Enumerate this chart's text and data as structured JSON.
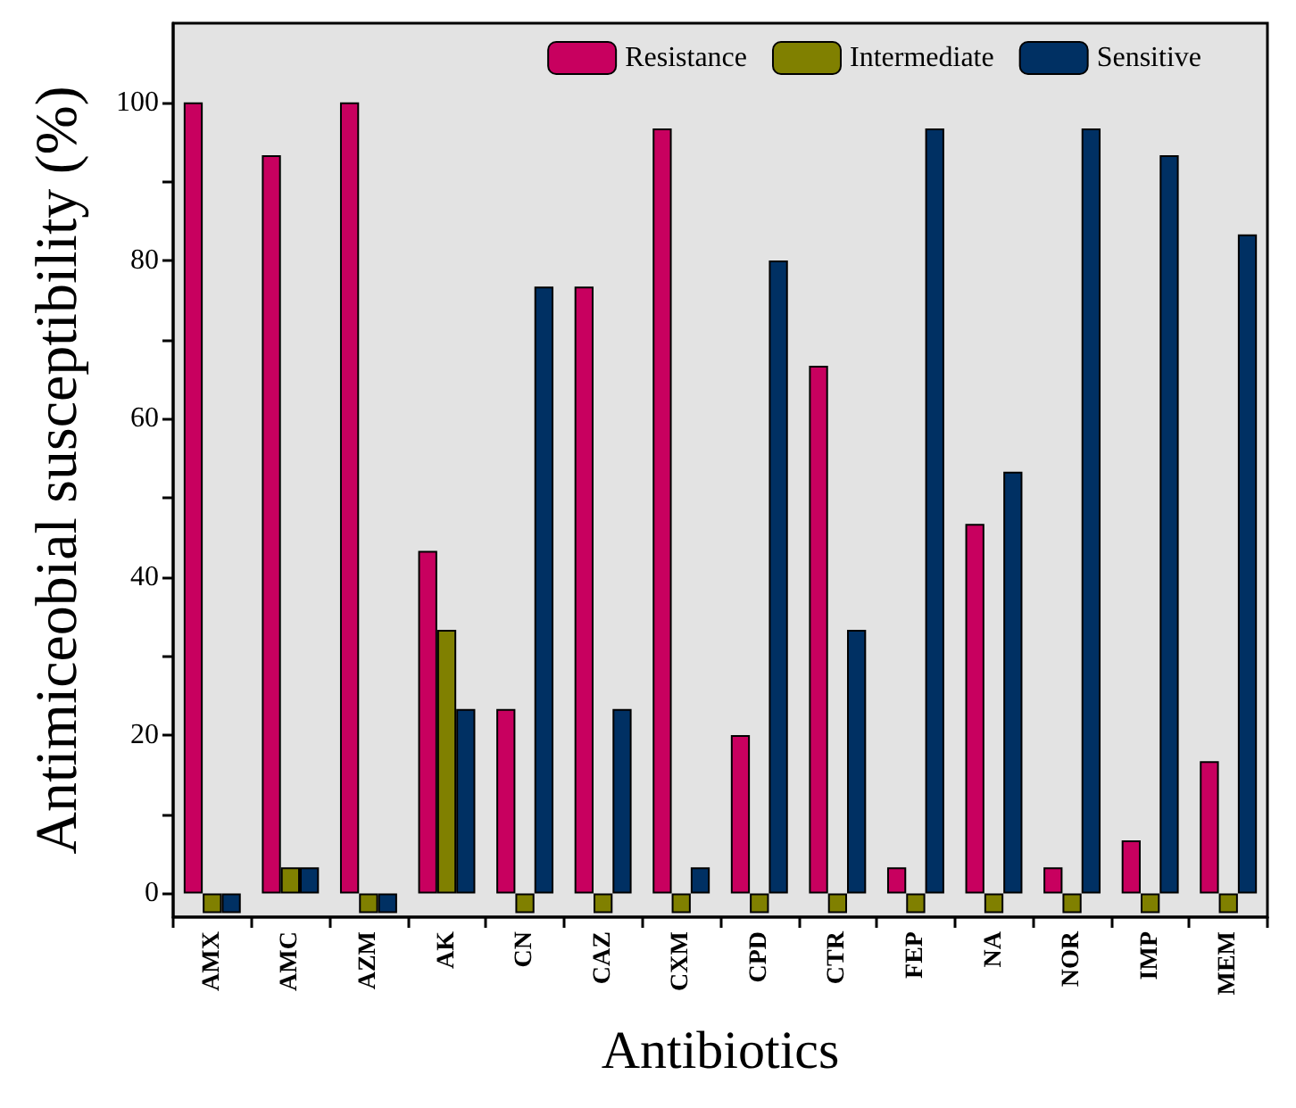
{
  "chart_data": {
    "type": "bar",
    "xlabel": "Antibiotics",
    "ylabel": "Antimiceobial susceptibility (%)",
    "categories": [
      "AMX",
      "AMC",
      "AZM",
      "AK",
      "CN",
      "CAZ",
      "CXM",
      "CPD",
      "CTR",
      "FEP",
      "NA",
      "NOR",
      "IMP",
      "MEM"
    ],
    "series": [
      {
        "name": "Resistance",
        "color": "#c8005f",
        "values": [
          100,
          93.3,
          100,
          43.3,
          23.3,
          76.7,
          96.7,
          20,
          66.7,
          3.3,
          46.7,
          3.3,
          6.7,
          16.7
        ]
      },
      {
        "name": "Intermediate",
        "color": "#808000",
        "values": [
          -2.5,
          3.3,
          -2.5,
          33.3,
          -2.5,
          -2.5,
          -2.5,
          -2.5,
          -2.5,
          -2.5,
          -2.5,
          -2.5,
          -2.5,
          -2.5
        ]
      },
      {
        "name": "Sensitive",
        "color": "#003063",
        "values": [
          -2.5,
          3.3,
          -2.5,
          23.3,
          76.7,
          23.3,
          3.3,
          80,
          33.3,
          96.7,
          53.3,
          96.7,
          93.3,
          83.3
        ]
      }
    ],
    "ylim": [
      -3,
      110
    ],
    "yticks": [
      0,
      {
        "value": 10,
        "label": null
      },
      20,
      {
        "value": 30,
        "label": null
      },
      40,
      {
        "value": 50,
        "label": null
      },
      60,
      {
        "value": 70,
        "label": null
      },
      80,
      {
        "value": 90,
        "label": null
      },
      100
    ],
    "grid": false,
    "legend": "top right"
  }
}
